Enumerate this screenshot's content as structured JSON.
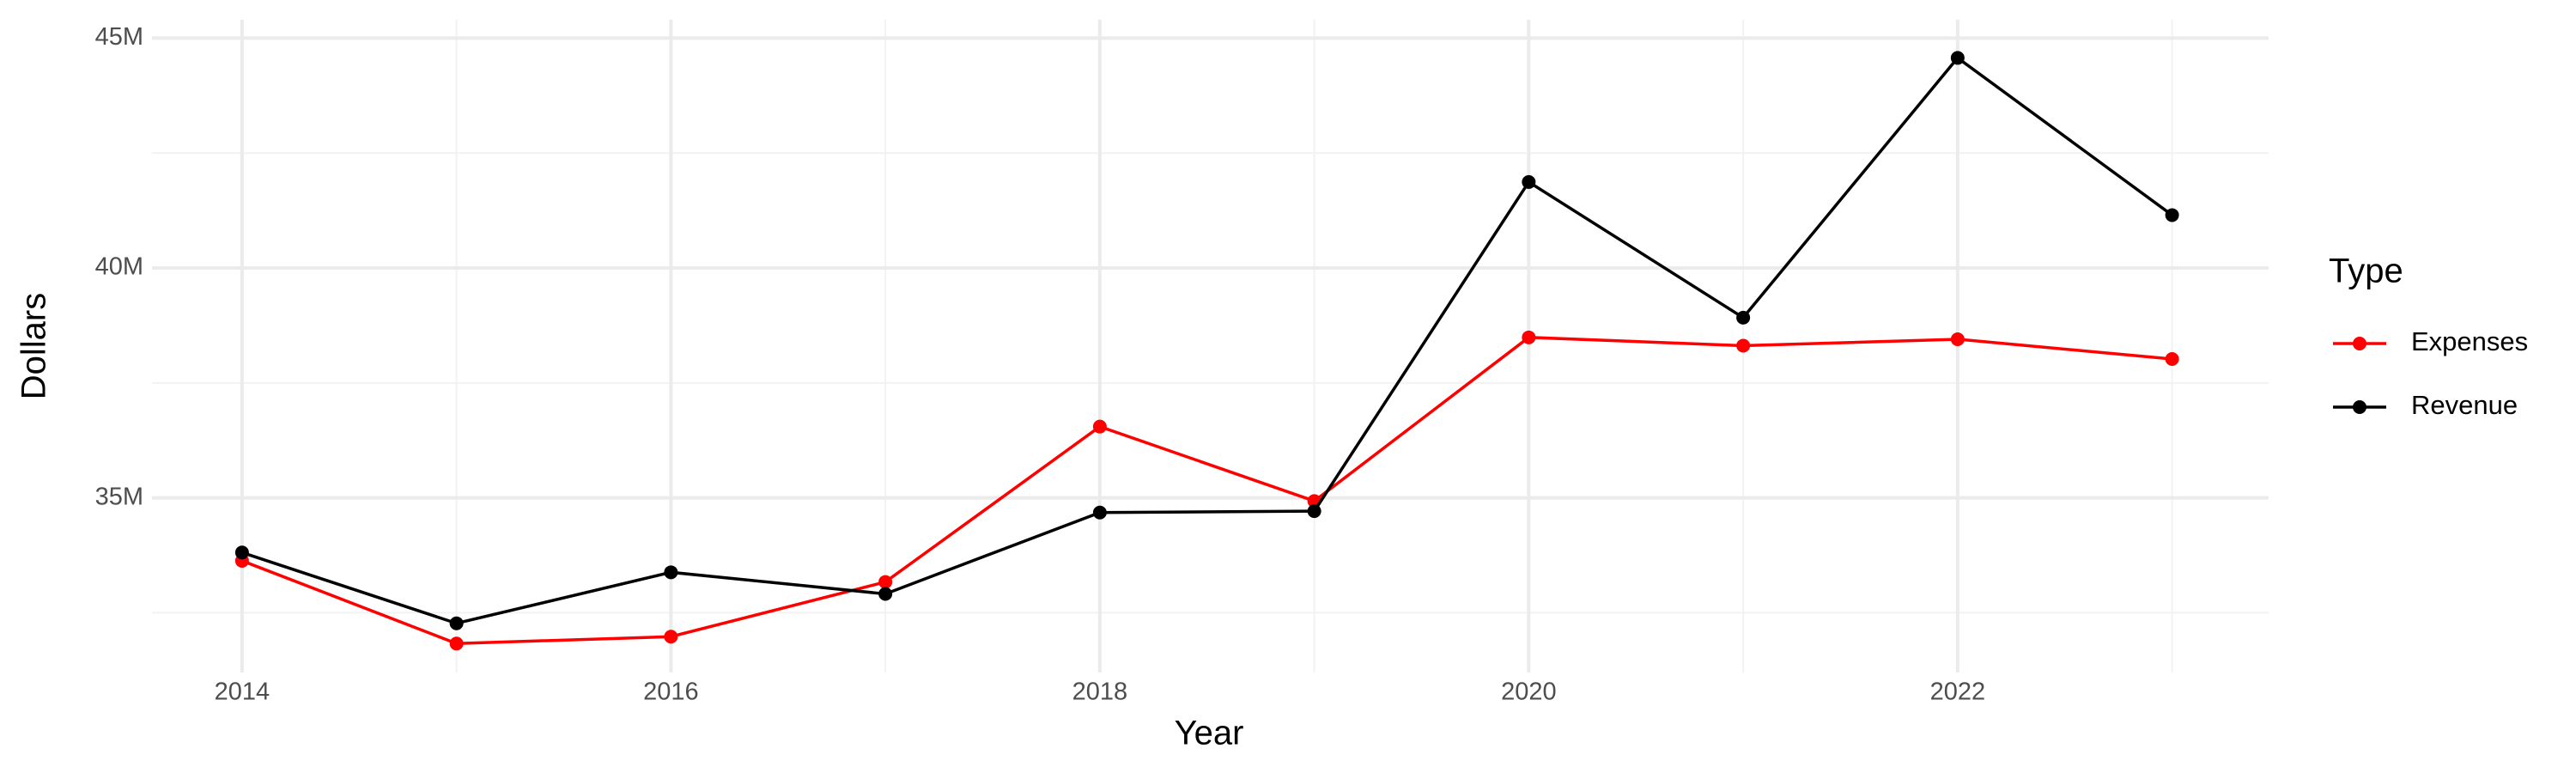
{
  "chart_data": {
    "type": "line",
    "x_label": "Year",
    "y_label": "Dollars",
    "legend_title": "Type",
    "legend_position": "right",
    "grid": true,
    "x": [
      2014,
      2015,
      2016,
      2017,
      2018,
      2019,
      2020,
      2021,
      2022,
      2023
    ],
    "series": [
      {
        "name": "Expenses",
        "color": "#ff0000",
        "values": [
          33630000,
          31830000,
          31980000,
          33170000,
          36550000,
          34930000,
          38490000,
          38310000,
          38450000,
          38020000
        ]
      },
      {
        "name": "Revenue",
        "color": "#000000",
        "values": [
          33810000,
          32270000,
          33380000,
          32910000,
          34680000,
          34710000,
          41870000,
          38920000,
          44570000,
          41150000
        ]
      }
    ],
    "xlim": [
      2013.58,
      2023.45
    ],
    "xticks": [
      2014,
      2016,
      2018,
      2020,
      2022
    ],
    "ylim": [
      31200000,
      45400000
    ],
    "yticks": [
      {
        "value": 35000000,
        "label": "35M"
      },
      {
        "value": 40000000,
        "label": "40M"
      },
      {
        "value": 45000000,
        "label": "45M"
      }
    ]
  }
}
